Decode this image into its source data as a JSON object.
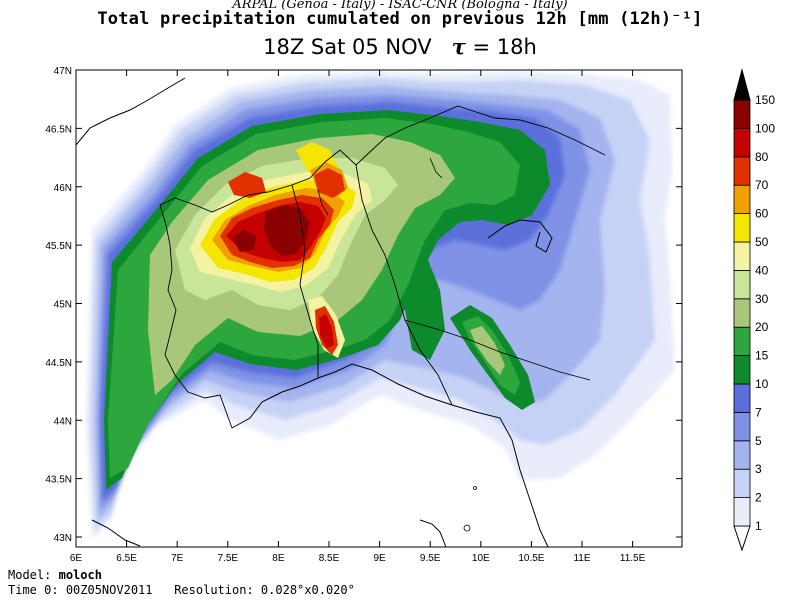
{
  "header": {
    "credit": "ARPAL (Genoa - Italy)  -  ISAC-CNR (Bologna - Italy)",
    "title": "Total precipitation cumulated on previous 12h [mm (12h)⁻¹]",
    "time_label": "18Z Sat 05 NOV",
    "tau_symbol": "τ",
    "tau_value": "= 18h"
  },
  "axes": {
    "lat_labels": [
      "47N",
      "46.5N",
      "46N",
      "45.5N",
      "45N",
      "44.5N",
      "44N",
      "43.5N",
      "43N"
    ],
    "lon_labels": [
      "6E",
      "6.5E",
      "7E",
      "7.5E",
      "8E",
      "8.5E",
      "9E",
      "9.5E",
      "10E",
      "10.5E",
      "11E",
      "11.5E"
    ]
  },
  "colorbar": {
    "levels": [
      "1",
      "2",
      "3",
      "5",
      "7",
      "10",
      "15",
      "20",
      "30",
      "40",
      "50",
      "60",
      "70",
      "80",
      "100",
      "150"
    ],
    "colors": [
      "#e8ecfb",
      "#c6d2f5",
      "#a3b4ee",
      "#7f92e6",
      "#5b6fdc",
      "#0d8a2c",
      "#2ea63e",
      "#a9c77a",
      "#c9e59a",
      "#f3f3a2",
      "#f4e600",
      "#f0a000",
      "#e33000",
      "#c40000",
      "#8a0000",
      "#000000"
    ]
  },
  "footer": {
    "model_label": "Model:",
    "model_value": "moloch",
    "time0_label": "Time 0:",
    "time0_value": "00Z05NOV2011",
    "resolution_label": "Resolution:",
    "resolution_value": "0.028°x0.020°"
  }
}
